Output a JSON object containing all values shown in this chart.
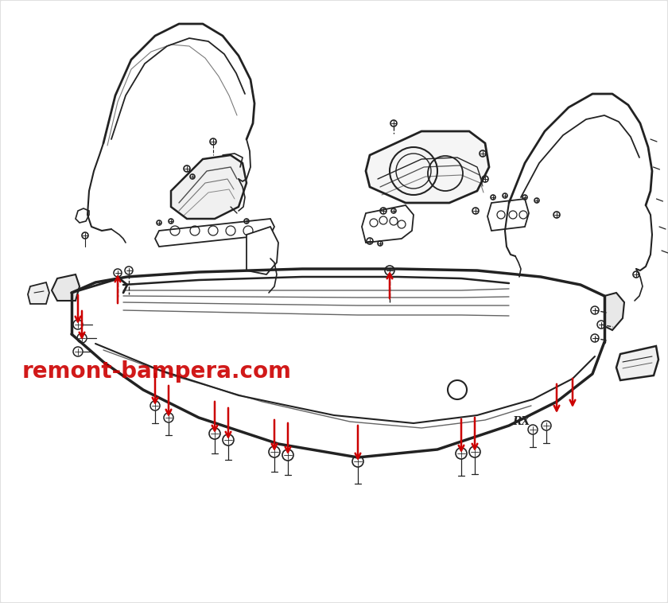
{
  "bg_color": "#ffffff",
  "watermark_text": "remont-bampera.com",
  "watermark_color": "#cc0000",
  "watermark_fontsize": 20,
  "line_color": "#222222",
  "arrow_color": "#cc0000",
  "figsize": [
    8.4,
    7.58
  ],
  "dpi": 100,
  "border_color": "#e0e0e0"
}
